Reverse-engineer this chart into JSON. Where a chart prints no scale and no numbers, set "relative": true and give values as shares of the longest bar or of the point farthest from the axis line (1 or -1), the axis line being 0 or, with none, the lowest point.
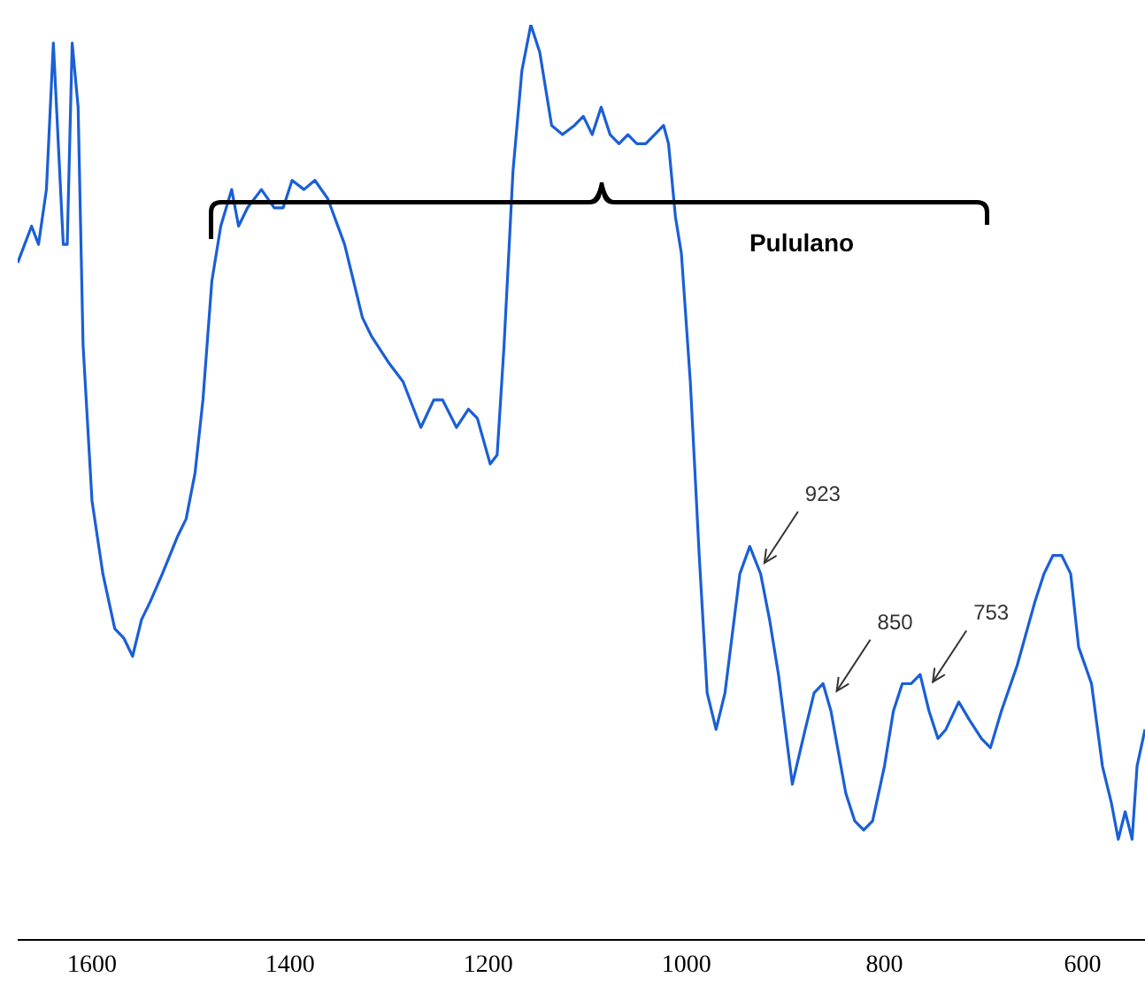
{
  "chart_data": {
    "type": "line",
    "relative": true,
    "xlim": [
      1675,
      537
    ],
    "xticks": [
      1600,
      1400,
      1200,
      1000,
      800,
      600
    ],
    "marker": "none",
    "line_style": "solid",
    "annotations": [
      "Pululano",
      {
        "text": "923",
        "x": 923,
        "y": 0.41
      },
      {
        "text": "850",
        "x": 850,
        "y": 0.27
      },
      {
        "text": "753",
        "x": 753,
        "y": 0.28
      }
    ],
    "series": [
      {
        "color": "#1a5fd6",
        "x": [
          1675,
          1661,
          1654,
          1646,
          1639,
          1634,
          1629,
          1625,
          1620,
          1614,
          1609,
          1600,
          1589,
          1577,
          1568,
          1559,
          1550,
          1541,
          1529,
          1514,
          1505,
          1496,
          1488,
          1479,
          1470,
          1459,
          1452,
          1443,
          1429,
          1416,
          1407,
          1398,
          1386,
          1375,
          1362,
          1345,
          1327,
          1318,
          1300,
          1286,
          1268,
          1255,
          1246,
          1232,
          1220,
          1211,
          1198,
          1191,
          1184,
          1175,
          1166,
          1157,
          1148,
          1136,
          1125,
          1113,
          1104,
          1095,
          1086,
          1077,
          1068,
          1059,
          1050,
          1041,
          1032,
          1023,
          1018,
          1011,
          1005,
          996,
          987,
          979,
          970,
          961,
          946,
          936,
          925,
          916,
          907,
          893,
          880,
          871,
          862,
          854,
          839,
          830,
          821,
          812,
          800,
          791,
          782,
          773,
          764,
          755,
          746,
          738,
          725,
          714,
          702,
          693,
          682,
          666,
          648,
          639,
          630,
          621,
          612,
          604,
          591,
          580,
          571,
          564,
          557,
          550,
          545,
          537
        ],
        "values": [
          0.74,
          0.78,
          0.76,
          0.82,
          0.98,
          0.87,
          0.76,
          0.76,
          0.98,
          0.91,
          0.65,
          0.48,
          0.4,
          0.34,
          0.33,
          0.31,
          0.35,
          0.37,
          0.4,
          0.44,
          0.46,
          0.51,
          0.59,
          0.72,
          0.78,
          0.82,
          0.78,
          0.8,
          0.82,
          0.8,
          0.8,
          0.83,
          0.82,
          0.83,
          0.81,
          0.76,
          0.68,
          0.66,
          0.63,
          0.61,
          0.56,
          0.59,
          0.59,
          0.56,
          0.58,
          0.57,
          0.52,
          0.53,
          0.65,
          0.84,
          0.95,
          1,
          0.97,
          0.89,
          0.88,
          0.89,
          0.9,
          0.88,
          0.91,
          0.88,
          0.87,
          0.88,
          0.87,
          0.87,
          0.88,
          0.89,
          0.87,
          0.79,
          0.75,
          0.61,
          0.42,
          0.27,
          0.23,
          0.27,
          0.4,
          0.43,
          0.4,
          0.35,
          0.29,
          0.17,
          0.23,
          0.27,
          0.28,
          0.25,
          0.16,
          0.13,
          0.12,
          0.13,
          0.19,
          0.25,
          0.28,
          0.28,
          0.29,
          0.25,
          0.22,
          0.23,
          0.26,
          0.24,
          0.22,
          0.21,
          0.25,
          0.3,
          0.37,
          0.4,
          0.42,
          0.42,
          0.4,
          0.32,
          0.28,
          0.19,
          0.15,
          0.11,
          0.14,
          0.11,
          0.19,
          0.23
        ]
      }
    ]
  }
}
